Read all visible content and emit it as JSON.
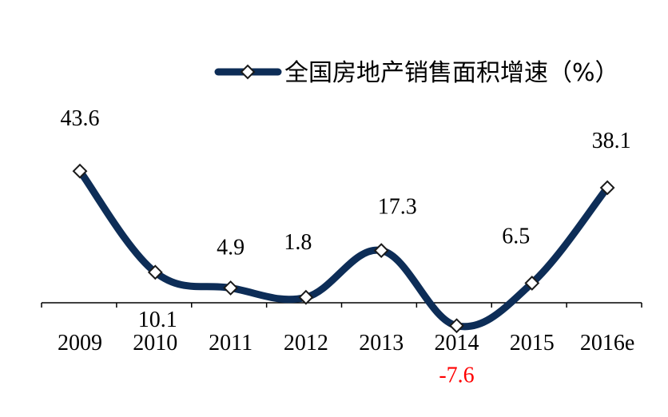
{
  "chart_data": {
    "type": "line",
    "categories": [
      "2009",
      "2010",
      "2011",
      "2012",
      "2013",
      "2014",
      "2015",
      "2016e"
    ],
    "series": [
      {
        "name": "全国房地产销售面积增速（%）",
        "values": [
          43.6,
          10.1,
          4.9,
          1.8,
          17.3,
          -7.6,
          6.5,
          38.1
        ],
        "data_labels": [
          "43.6",
          "10.1",
          "4.9",
          "1.8",
          "17.3",
          "-7.6",
          "6.5",
          "38.1"
        ],
        "color": "#0d2d57",
        "marker": "diamond"
      }
    ],
    "title": "",
    "xlabel": "",
    "ylabel": "",
    "grid": false,
    "legend_position": "top-right",
    "negative_label_color": "#ff0000",
    "label_color": "#000000"
  }
}
